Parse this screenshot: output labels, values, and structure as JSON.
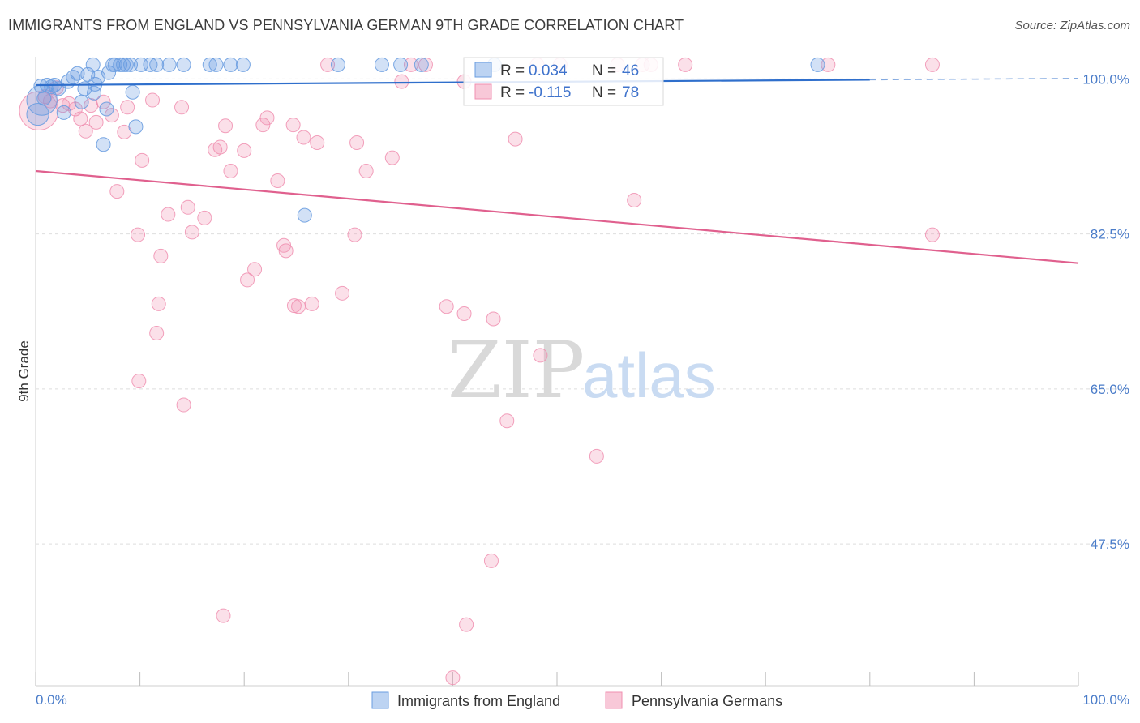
{
  "header": {
    "title": "IMMIGRANTS FROM ENGLAND VS PENNSYLVANIA GERMAN 9TH GRADE CORRELATION CHART",
    "source": "Source: ZipAtlas.com"
  },
  "watermark": {
    "zip": "ZIP",
    "atlas": "atlas"
  },
  "stats": {
    "england": {
      "r_label": "R =",
      "r_value": "0.034",
      "n_label": "N =",
      "n_value": "46"
    },
    "pa_german": {
      "r_label": "R =",
      "r_value": "-0.115",
      "n_label": "N =",
      "n_value": "78"
    }
  },
  "chart_data": {
    "type": "scatter",
    "title": "IMMIGRANTS FROM ENGLAND VS PENNSYLVANIA GERMAN 9TH GRADE CORRELATION CHART",
    "xlabel": "",
    "ylabel": "9th Grade",
    "xlim": [
      0,
      100
    ],
    "ylim": [
      31.5,
      102.5
    ],
    "x_tick_labels": [
      "0.0%",
      "100.0%"
    ],
    "y_ticks": [
      100.0,
      82.5,
      65.0,
      47.5
    ],
    "y_tick_labels": [
      "100.0%",
      "82.5%",
      "65.0%",
      "47.5%"
    ],
    "grid": true,
    "legend_position": "bottom-center",
    "colors": {
      "england": "#6a9de0",
      "england_line": "#2f6fcc",
      "pa_german": "#f08fb0",
      "pa_german_line": "#e0608e",
      "tick_text": "#4a7cc9"
    },
    "series": [
      {
        "name": "Immigrants from England",
        "r": 0.034,
        "n": 46,
        "trend": {
          "x": [
            0,
            80
          ],
          "y": [
            99.3,
            99.9
          ],
          "dashed_extension_to": 100
        },
        "points": [
          {
            "x": 0.5,
            "y": 99.2,
            "s": 1
          },
          {
            "x": 0.8,
            "y": 97.8,
            "s": 1
          },
          {
            "x": 1.1,
            "y": 99.3,
            "s": 1
          },
          {
            "x": 1.5,
            "y": 99.1,
            "s": 1
          },
          {
            "x": 1.8,
            "y": 99.3,
            "s": 1
          },
          {
            "x": 2.2,
            "y": 98.9,
            "s": 1
          },
          {
            "x": 2.7,
            "y": 96.2,
            "s": 1
          },
          {
            "x": 3.1,
            "y": 99.7,
            "s": 1
          },
          {
            "x": 3.6,
            "y": 100.2,
            "s": 1
          },
          {
            "x": 4.0,
            "y": 100.6,
            "s": 1
          },
          {
            "x": 4.4,
            "y": 97.4,
            "s": 1
          },
          {
            "x": 4.7,
            "y": 98.9,
            "s": 1
          },
          {
            "x": 5.0,
            "y": 100.5,
            "s": 1
          },
          {
            "x": 5.6,
            "y": 98.4,
            "s": 1
          },
          {
            "x": 5.7,
            "y": 99.4,
            "s": 1
          },
          {
            "x": 6.0,
            "y": 100.2,
            "s": 1
          },
          {
            "x": 5.5,
            "y": 101.6,
            "s": 1
          },
          {
            "x": 6.5,
            "y": 92.6,
            "s": 1
          },
          {
            "x": 6.8,
            "y": 96.6,
            "s": 1
          },
          {
            "x": 7.0,
            "y": 100.7,
            "s": 1
          },
          {
            "x": 7.4,
            "y": 101.6,
            "s": 1
          },
          {
            "x": 7.6,
            "y": 101.6,
            "s": 1
          },
          {
            "x": 8.1,
            "y": 101.6,
            "s": 1
          },
          {
            "x": 8.4,
            "y": 101.6,
            "s": 1
          },
          {
            "x": 8.7,
            "y": 101.6,
            "s": 1
          },
          {
            "x": 9.1,
            "y": 101.6,
            "s": 1
          },
          {
            "x": 9.3,
            "y": 98.5,
            "s": 1
          },
          {
            "x": 9.6,
            "y": 94.6,
            "s": 1
          },
          {
            "x": 10.1,
            "y": 101.6,
            "s": 1
          },
          {
            "x": 11.0,
            "y": 101.6,
            "s": 1
          },
          {
            "x": 11.6,
            "y": 101.6,
            "s": 1
          },
          {
            "x": 12.8,
            "y": 101.6,
            "s": 1
          },
          {
            "x": 14.2,
            "y": 101.6,
            "s": 1
          },
          {
            "x": 16.7,
            "y": 101.6,
            "s": 1
          },
          {
            "x": 17.3,
            "y": 101.6,
            "s": 1
          },
          {
            "x": 18.7,
            "y": 101.6,
            "s": 1
          },
          {
            "x": 19.9,
            "y": 101.6,
            "s": 1
          },
          {
            "x": 25.8,
            "y": 84.6,
            "s": 1
          },
          {
            "x": 29.0,
            "y": 101.6,
            "s": 1
          },
          {
            "x": 35.0,
            "y": 101.6,
            "s": 1
          },
          {
            "x": 37.0,
            "y": 101.6,
            "s": 1
          },
          {
            "x": 44.0,
            "y": 101.6,
            "s": 1
          },
          {
            "x": 75.0,
            "y": 101.6,
            "s": 1
          },
          {
            "x": 33.2,
            "y": 101.6,
            "s": 1
          },
          {
            "x": 0.6,
            "y": 97.6,
            "s": 2.2
          },
          {
            "x": 0.2,
            "y": 96.0,
            "s": 1.6
          }
        ]
      },
      {
        "name": "Pennsylvania Germans",
        "r": -0.115,
        "n": 78,
        "trend": {
          "x": [
            0,
            100
          ],
          "y": [
            89.6,
            79.2
          ]
        },
        "points": [
          {
            "x": 0.3,
            "y": 96.4,
            "s": 2.8
          },
          {
            "x": 0.9,
            "y": 98.0,
            "s": 1
          },
          {
            "x": 1.4,
            "y": 97.5,
            "s": 1
          },
          {
            "x": 2.0,
            "y": 99.0,
            "s": 1
          },
          {
            "x": 2.6,
            "y": 97.0,
            "s": 1
          },
          {
            "x": 3.2,
            "y": 97.2,
            "s": 1
          },
          {
            "x": 3.8,
            "y": 96.6,
            "s": 1
          },
          {
            "x": 4.3,
            "y": 95.5,
            "s": 1
          },
          {
            "x": 4.8,
            "y": 94.1,
            "s": 1
          },
          {
            "x": 5.3,
            "y": 97.0,
            "s": 1
          },
          {
            "x": 5.8,
            "y": 95.1,
            "s": 1
          },
          {
            "x": 6.5,
            "y": 97.4,
            "s": 1
          },
          {
            "x": 7.3,
            "y": 95.9,
            "s": 1
          },
          {
            "x": 7.8,
            "y": 87.3,
            "s": 1
          },
          {
            "x": 8.5,
            "y": 94.0,
            "s": 1
          },
          {
            "x": 8.8,
            "y": 96.8,
            "s": 1
          },
          {
            "x": 10.2,
            "y": 90.8,
            "s": 1
          },
          {
            "x": 9.8,
            "y": 82.4,
            "s": 1
          },
          {
            "x": 11.2,
            "y": 97.6,
            "s": 1
          },
          {
            "x": 12.0,
            "y": 80.0,
            "s": 1
          },
          {
            "x": 11.8,
            "y": 74.6,
            "s": 1
          },
          {
            "x": 11.6,
            "y": 71.3,
            "s": 1
          },
          {
            "x": 12.7,
            "y": 84.7,
            "s": 1
          },
          {
            "x": 14.0,
            "y": 96.8,
            "s": 1
          },
          {
            "x": 14.6,
            "y": 85.5,
            "s": 1
          },
          {
            "x": 15.0,
            "y": 82.7,
            "s": 1
          },
          {
            "x": 16.2,
            "y": 84.3,
            "s": 1
          },
          {
            "x": 17.7,
            "y": 92.3,
            "s": 1
          },
          {
            "x": 17.2,
            "y": 92.0,
            "s": 1
          },
          {
            "x": 18.2,
            "y": 94.7,
            "s": 1
          },
          {
            "x": 18.7,
            "y": 89.6,
            "s": 1
          },
          {
            "x": 20.0,
            "y": 91.9,
            "s": 1
          },
          {
            "x": 21.8,
            "y": 94.8,
            "s": 1
          },
          {
            "x": 22.2,
            "y": 95.6,
            "s": 1
          },
          {
            "x": 23.2,
            "y": 88.5,
            "s": 1
          },
          {
            "x": 23.8,
            "y": 81.2,
            "s": 1
          },
          {
            "x": 24.7,
            "y": 94.8,
            "s": 1
          },
          {
            "x": 24.0,
            "y": 80.6,
            "s": 1
          },
          {
            "x": 25.7,
            "y": 93.4,
            "s": 1
          },
          {
            "x": 27.0,
            "y": 92.8,
            "s": 1
          },
          {
            "x": 20.3,
            "y": 77.3,
            "s": 1
          },
          {
            "x": 21.0,
            "y": 78.5,
            "s": 1
          },
          {
            "x": 24.8,
            "y": 74.4,
            "s": 1
          },
          {
            "x": 25.2,
            "y": 74.3,
            "s": 1
          },
          {
            "x": 30.8,
            "y": 92.8,
            "s": 1
          },
          {
            "x": 30.6,
            "y": 82.4,
            "s": 1
          },
          {
            "x": 31.7,
            "y": 89.6,
            "s": 1
          },
          {
            "x": 26.5,
            "y": 74.6,
            "s": 1
          },
          {
            "x": 29.4,
            "y": 75.8,
            "s": 1
          },
          {
            "x": 34.2,
            "y": 91.1,
            "s": 1
          },
          {
            "x": 35.1,
            "y": 99.7,
            "s": 1
          },
          {
            "x": 36.0,
            "y": 101.6,
            "s": 1
          },
          {
            "x": 37.4,
            "y": 101.6,
            "s": 1
          },
          {
            "x": 28.0,
            "y": 101.6,
            "s": 1
          },
          {
            "x": 39.4,
            "y": 74.3,
            "s": 1
          },
          {
            "x": 41.1,
            "y": 73.5,
            "s": 1
          },
          {
            "x": 43.9,
            "y": 72.9,
            "s": 1
          },
          {
            "x": 46.0,
            "y": 93.2,
            "s": 1
          },
          {
            "x": 48.1,
            "y": 101.6,
            "s": 1
          },
          {
            "x": 50.3,
            "y": 101.6,
            "s": 1
          },
          {
            "x": 55.8,
            "y": 101.6,
            "s": 1
          },
          {
            "x": 58.2,
            "y": 101.6,
            "s": 1
          },
          {
            "x": 59.0,
            "y": 101.6,
            "s": 1
          },
          {
            "x": 62.3,
            "y": 101.6,
            "s": 1
          },
          {
            "x": 76.0,
            "y": 101.6,
            "s": 1
          },
          {
            "x": 86.0,
            "y": 101.6,
            "s": 1
          },
          {
            "x": 57.4,
            "y": 86.3,
            "s": 1
          },
          {
            "x": 86.0,
            "y": 82.4,
            "s": 1
          },
          {
            "x": 48.4,
            "y": 68.8,
            "s": 1
          },
          {
            "x": 45.2,
            "y": 61.4,
            "s": 1
          },
          {
            "x": 53.8,
            "y": 57.4,
            "s": 1
          },
          {
            "x": 14.2,
            "y": 63.2,
            "s": 1
          },
          {
            "x": 9.9,
            "y": 65.9,
            "s": 1
          },
          {
            "x": 43.7,
            "y": 45.6,
            "s": 1
          },
          {
            "x": 18.0,
            "y": 39.4,
            "s": 1
          },
          {
            "x": 41.1,
            "y": 99.7,
            "s": 1
          },
          {
            "x": 41.3,
            "y": 38.4,
            "s": 1
          },
          {
            "x": 40.0,
            "y": 32.4,
            "s": 1
          }
        ]
      }
    ]
  },
  "legend": {
    "items": [
      {
        "label": "Immigrants from England"
      },
      {
        "label": "Pennsylvania Germans"
      }
    ]
  }
}
